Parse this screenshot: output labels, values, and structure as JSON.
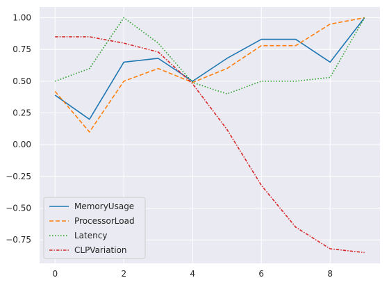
{
  "chart_data": {
    "type": "line",
    "x": [
      0,
      1,
      2,
      3,
      4,
      5,
      6,
      7,
      8,
      9
    ],
    "xlim": [
      -0.45,
      9.45
    ],
    "ylim": [
      -0.935,
      1.085
    ],
    "xticks": [
      0,
      2,
      4,
      6,
      8
    ],
    "xtick_labels": [
      "0",
      "2",
      "4",
      "6",
      "8"
    ],
    "yticks": [
      -0.75,
      -0.5,
      -0.25,
      0.0,
      0.25,
      0.5,
      0.75,
      1.0
    ],
    "ytick_labels": [
      "−0.75",
      "−0.50",
      "−0.25",
      "0.00",
      "0.25",
      "0.50",
      "0.75",
      "1.00"
    ],
    "grid": true,
    "background": "#eaeaf2",
    "legend_position": "lower-left",
    "series": [
      {
        "name": "MemoryUsage",
        "color": "#1f77b4",
        "dash": "solid",
        "values": [
          0.39,
          0.2,
          0.65,
          0.68,
          0.5,
          0.68,
          0.83,
          0.83,
          0.65,
          1.0
        ]
      },
      {
        "name": "ProcessorLoad",
        "color": "#ff7f0e",
        "dash": "dashed",
        "values": [
          0.42,
          0.1,
          0.5,
          0.6,
          0.49,
          0.6,
          0.78,
          0.78,
          0.95,
          1.0
        ]
      },
      {
        "name": "Latency",
        "color": "#2ca02c",
        "dash": "dotted",
        "values": [
          0.5,
          0.6,
          1.0,
          0.8,
          0.49,
          0.4,
          0.5,
          0.5,
          0.53,
          1.0
        ]
      },
      {
        "name": "CLPVariation",
        "color": "#d62728",
        "dash": "dashdot",
        "values": [
          0.85,
          0.85,
          0.8,
          0.73,
          0.48,
          0.12,
          -0.32,
          -0.65,
          -0.82,
          -0.85
        ]
      }
    ]
  }
}
